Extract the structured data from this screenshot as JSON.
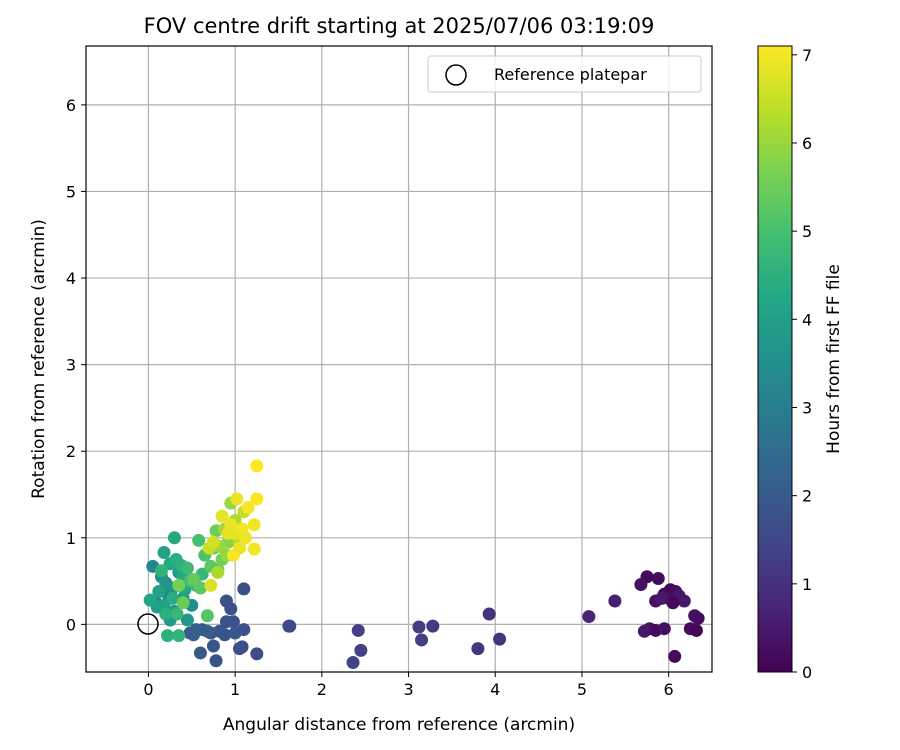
{
  "chart_data": {
    "type": "scatter",
    "title": "FOV centre drift starting at 2025/07/06 03:19:09",
    "xlabel": "Angular distance from reference (arcmin)",
    "ylabel": "Rotation from reference (arcmin)",
    "xlim": [
      -0.72,
      6.5
    ],
    "ylim": [
      -0.55,
      6.68
    ],
    "x_ticks": [
      0,
      1,
      2,
      3,
      4,
      5,
      6
    ],
    "y_ticks": [
      0,
      1,
      2,
      3,
      4,
      5,
      6
    ],
    "grid": true,
    "legend": {
      "placement": "top-right",
      "entries": [
        "Reference platepar"
      ]
    },
    "colorbar": {
      "label": "Hours from first FF file",
      "range": [
        0,
        7.1
      ],
      "ticks": [
        0,
        1,
        2,
        3,
        4,
        5,
        6,
        7
      ],
      "colormap": "viridis"
    },
    "reference_point": {
      "x": 0,
      "y": 0
    },
    "points": [
      {
        "x": 5.75,
        "y": 0.55,
        "h": 0.15
      },
      {
        "x": 5.68,
        "y": 0.46,
        "h": 0.3
      },
      {
        "x": 5.88,
        "y": 0.53,
        "h": 0.2
      },
      {
        "x": 5.85,
        "y": 0.27,
        "h": 0.35
      },
      {
        "x": 5.95,
        "y": 0.35,
        "h": 0.25
      },
      {
        "x": 6.02,
        "y": 0.4,
        "h": 0.1
      },
      {
        "x": 6.08,
        "y": 0.38,
        "h": 0.2
      },
      {
        "x": 6.0,
        "y": 0.3,
        "h": 0.3
      },
      {
        "x": 6.12,
        "y": 0.33,
        "h": 0.4
      },
      {
        "x": 6.18,
        "y": 0.27,
        "h": 0.45
      },
      {
        "x": 5.92,
        "y": 0.3,
        "h": 0.5
      },
      {
        "x": 6.05,
        "y": 0.25,
        "h": 0.15
      },
      {
        "x": 5.78,
        "y": -0.05,
        "h": 0.35
      },
      {
        "x": 5.85,
        "y": -0.07,
        "h": 0.2
      },
      {
        "x": 5.72,
        "y": -0.08,
        "h": 0.4
      },
      {
        "x": 5.95,
        "y": -0.05,
        "h": 0.3
      },
      {
        "x": 6.25,
        "y": -0.05,
        "h": 0.2
      },
      {
        "x": 6.32,
        "y": -0.07,
        "h": 0.1
      },
      {
        "x": 6.3,
        "y": 0.1,
        "h": 0.3
      },
      {
        "x": 6.34,
        "y": 0.07,
        "h": 0.25
      },
      {
        "x": 6.07,
        "y": -0.37,
        "h": 0.2
      },
      {
        "x": 5.38,
        "y": 0.27,
        "h": 0.6
      },
      {
        "x": 5.08,
        "y": 0.09,
        "h": 0.75
      },
      {
        "x": 3.93,
        "y": 0.12,
        "h": 1.0
      },
      {
        "x": 4.05,
        "y": -0.17,
        "h": 1.05
      },
      {
        "x": 3.8,
        "y": -0.28,
        "h": 1.1
      },
      {
        "x": 3.28,
        "y": -0.02,
        "h": 1.2
      },
      {
        "x": 3.12,
        "y": -0.03,
        "h": 1.25
      },
      {
        "x": 3.15,
        "y": -0.18,
        "h": 1.3
      },
      {
        "x": 2.42,
        "y": -0.07,
        "h": 1.35
      },
      {
        "x": 2.45,
        "y": -0.3,
        "h": 1.4
      },
      {
        "x": 2.36,
        "y": -0.44,
        "h": 1.45
      },
      {
        "x": 1.62,
        "y": -0.02,
        "h": 1.5
      },
      {
        "x": 1.63,
        "y": -0.02,
        "h": 1.55
      },
      {
        "x": 1.25,
        "y": -0.34,
        "h": 1.6
      },
      {
        "x": 1.1,
        "y": 0.41,
        "h": 1.7
      },
      {
        "x": 1.08,
        "y": -0.26,
        "h": 1.65
      },
      {
        "x": 1.05,
        "y": -0.28,
        "h": 1.7
      },
      {
        "x": 1.1,
        "y": -0.06,
        "h": 1.75
      },
      {
        "x": 0.98,
        "y": 0.03,
        "h": 1.8
      },
      {
        "x": 0.95,
        "y": 0.18,
        "h": 1.7
      },
      {
        "x": 0.9,
        "y": 0.27,
        "h": 1.75
      },
      {
        "x": 0.9,
        "y": 0.03,
        "h": 1.85
      },
      {
        "x": 0.88,
        "y": -0.12,
        "h": 1.8
      },
      {
        "x": 0.82,
        "y": -0.08,
        "h": 1.9
      },
      {
        "x": 0.78,
        "y": -0.42,
        "h": 1.85
      },
      {
        "x": 0.75,
        "y": -0.25,
        "h": 1.9
      },
      {
        "x": 0.72,
        "y": -0.1,
        "h": 2.0
      },
      {
        "x": 0.6,
        "y": -0.33,
        "h": 1.95
      },
      {
        "x": 0.62,
        "y": -0.06,
        "h": 2.0
      },
      {
        "x": 0.52,
        "y": -0.12,
        "h": 2.1
      },
      {
        "x": 0.48,
        "y": -0.1,
        "h": 2.05
      },
      {
        "x": 0.55,
        "y": -0.06,
        "h": 2.15
      },
      {
        "x": 0.68,
        "y": -0.08,
        "h": 2.1
      },
      {
        "x": 1.0,
        "y": -0.1,
        "h": 1.95
      },
      {
        "x": 0.05,
        "y": 0.67,
        "h": 3.2
      },
      {
        "x": 0.08,
        "y": 0.26,
        "h": 3.4
      },
      {
        "x": 0.15,
        "y": 0.55,
        "h": 3.5
      },
      {
        "x": 0.2,
        "y": 0.48,
        "h": 3.6
      },
      {
        "x": 0.22,
        "y": 0.35,
        "h": 3.3
      },
      {
        "x": 0.28,
        "y": 0.42,
        "h": 3.7
      },
      {
        "x": 0.3,
        "y": 0.15,
        "h": 3.8
      },
      {
        "x": 0.1,
        "y": 0.2,
        "h": 3.9
      },
      {
        "x": 0.4,
        "y": 0.3,
        "h": 3.6
      },
      {
        "x": 0.35,
        "y": 0.6,
        "h": 3.9
      },
      {
        "x": 0.5,
        "y": 0.22,
        "h": 3.5
      },
      {
        "x": 0.45,
        "y": 0.05,
        "h": 3.7
      },
      {
        "x": 0.25,
        "y": 0.05,
        "h": 3.8
      },
      {
        "x": 0.18,
        "y": 0.22,
        "h": 4.0
      },
      {
        "x": 0.12,
        "y": 0.38,
        "h": 4.1
      },
      {
        "x": 0.02,
        "y": 0.28,
        "h": 4.2
      },
      {
        "x": 0.18,
        "y": 0.83,
        "h": 4.1
      },
      {
        "x": 0.3,
        "y": 1.0,
        "h": 4.3
      },
      {
        "x": 0.25,
        "y": 0.7,
        "h": 4.2
      },
      {
        "x": 0.32,
        "y": 0.75,
        "h": 4.4
      },
      {
        "x": 0.22,
        "y": -0.13,
        "h": 4.5
      },
      {
        "x": 0.35,
        "y": -0.13,
        "h": 4.6
      },
      {
        "x": 0.4,
        "y": 0.55,
        "h": 4.3
      },
      {
        "x": 0.38,
        "y": 0.68,
        "h": 4.5
      },
      {
        "x": 0.28,
        "y": 0.3,
        "h": 4.4
      },
      {
        "x": 0.15,
        "y": 0.62,
        "h": 4.6
      },
      {
        "x": 0.42,
        "y": 0.4,
        "h": 4.2
      },
      {
        "x": 0.33,
        "y": 0.12,
        "h": 4.7
      },
      {
        "x": 0.2,
        "y": 0.12,
        "h": 4.5
      },
      {
        "x": 0.45,
        "y": 0.65,
        "h": 4.8
      },
      {
        "x": 0.48,
        "y": 0.5,
        "h": 4.9
      },
      {
        "x": 0.55,
        "y": 0.45,
        "h": 4.8
      },
      {
        "x": 0.62,
        "y": 0.58,
        "h": 4.7
      },
      {
        "x": 0.58,
        "y": 0.97,
        "h": 5.0
      },
      {
        "x": 0.65,
        "y": 0.8,
        "h": 5.1
      },
      {
        "x": 0.68,
        "y": 0.1,
        "h": 5.2
      },
      {
        "x": 0.72,
        "y": 0.67,
        "h": 5.3
      },
      {
        "x": 0.8,
        "y": 0.63,
        "h": 5.2
      },
      {
        "x": 0.75,
        "y": 0.88,
        "h": 5.4
      },
      {
        "x": 0.78,
        "y": 1.08,
        "h": 5.5
      },
      {
        "x": 0.85,
        "y": 0.75,
        "h": 5.6
      },
      {
        "x": 0.6,
        "y": 0.42,
        "h": 5.3
      },
      {
        "x": 0.52,
        "y": 0.52,
        "h": 5.4
      },
      {
        "x": 0.4,
        "y": 0.25,
        "h": 5.5
      },
      {
        "x": 0.35,
        "y": 0.45,
        "h": 5.6
      },
      {
        "x": 0.92,
        "y": 0.95,
        "h": 5.8
      },
      {
        "x": 0.95,
        "y": 1.4,
        "h": 6.0
      },
      {
        "x": 0.88,
        "y": 1.1,
        "h": 6.1
      },
      {
        "x": 1.0,
        "y": 1.2,
        "h": 6.2
      },
      {
        "x": 0.82,
        "y": 0.9,
        "h": 6.0
      },
      {
        "x": 0.9,
        "y": 0.8,
        "h": 5.9
      },
      {
        "x": 1.05,
        "y": 0.95,
        "h": 6.3
      },
      {
        "x": 1.1,
        "y": 1.3,
        "h": 6.4
      },
      {
        "x": 0.7,
        "y": 0.88,
        "h": 6.5
      },
      {
        "x": 0.75,
        "y": 0.95,
        "h": 6.6
      },
      {
        "x": 0.8,
        "y": 0.6,
        "h": 6.2
      },
      {
        "x": 0.72,
        "y": 0.45,
        "h": 6.7
      },
      {
        "x": 0.85,
        "y": 1.25,
        "h": 6.8
      },
      {
        "x": 0.95,
        "y": 1.15,
        "h": 6.9
      },
      {
        "x": 1.0,
        "y": 1.05,
        "h": 6.8
      },
      {
        "x": 1.02,
        "y": 1.45,
        "h": 6.9
      },
      {
        "x": 1.08,
        "y": 1.1,
        "h": 7.0
      },
      {
        "x": 1.12,
        "y": 1.0,
        "h": 6.9
      },
      {
        "x": 1.15,
        "y": 1.35,
        "h": 7.0
      },
      {
        "x": 1.22,
        "y": 1.15,
        "h": 6.95
      },
      {
        "x": 1.25,
        "y": 1.45,
        "h": 7.05
      },
      {
        "x": 1.22,
        "y": 0.87,
        "h": 7.0
      },
      {
        "x": 0.98,
        "y": 0.8,
        "h": 7.05
      },
      {
        "x": 1.05,
        "y": 0.88,
        "h": 6.95
      },
      {
        "x": 1.25,
        "y": 1.83,
        "h": 7.1
      },
      {
        "x": 0.92,
        "y": 1.05,
        "h": 6.85
      }
    ]
  }
}
